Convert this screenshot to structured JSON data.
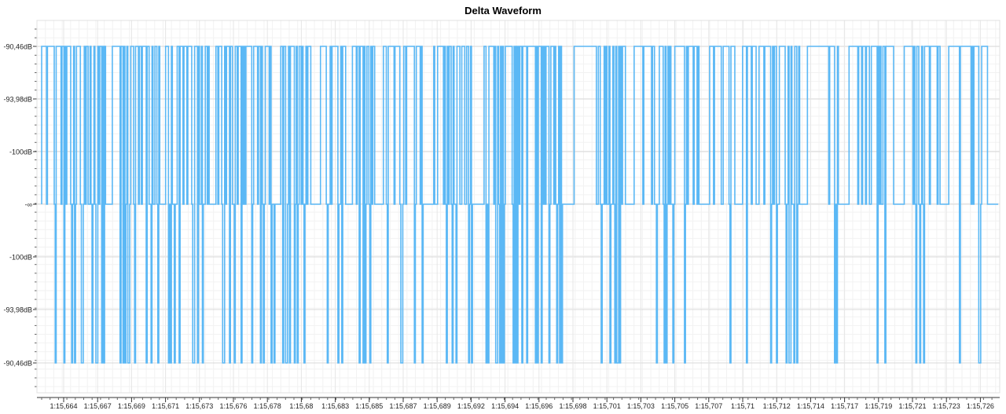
{
  "chart_data": {
    "type": "line",
    "title": "Delta Waveform",
    "xlabel": "",
    "ylabel": "",
    "y_tick_labels": [
      "-90,46dB",
      "-93,98dB",
      "-100dB",
      "-∞",
      "-100dB",
      "-93,98dB",
      "-90,46dB"
    ],
    "y_tick_values": [
      3,
      2,
      1,
      0,
      -1,
      -2,
      -3
    ],
    "ylim": [
      -3,
      3
    ],
    "x_tick_labels": [
      "1:15,664",
      "1:15,667",
      "1:15,669",
      "1:15,671",
      "1:15,673",
      "1:15,676",
      "1:15,678",
      "1:15,68",
      "1:15,683",
      "1:15,685",
      "1:15,687",
      "1:15,689",
      "1:15,692",
      "1:15,694",
      "1:15,696",
      "1:15,698",
      "1:15,701",
      "1:15,703",
      "1:15,705",
      "1:15,707",
      "1:15,71",
      "1:15,712",
      "1:15,714",
      "1:15,717",
      "1:15,719",
      "1:15,721",
      "1:15,723",
      "1:15,726"
    ],
    "xlim_ms": [
      75662.2,
      75727.8
    ],
    "series": [
      {
        "name": "",
        "color": "#5bb8f5",
        "levels": [
          3,
          3,
          3,
          3,
          3,
          0,
          3,
          3,
          3,
          3,
          3,
          3,
          3,
          0,
          -3,
          3,
          3,
          3,
          3,
          3,
          0,
          3,
          3,
          -3,
          3,
          0,
          3,
          3,
          3,
          3,
          0,
          -3,
          0,
          3,
          -3,
          0,
          3,
          3,
          3,
          3,
          0,
          -3,
          -3,
          0,
          3,
          0,
          3,
          3,
          0,
          0,
          3,
          0,
          -3,
          0,
          3,
          0,
          -3,
          -3,
          3,
          0,
          3,
          3,
          -3,
          3,
          -3,
          3,
          0,
          0,
          0,
          0,
          0,
          0,
          0,
          3,
          3,
          3,
          3,
          3,
          3,
          3,
          3,
          -3,
          3,
          3,
          -3,
          3,
          -3,
          0,
          3,
          -3,
          -3,
          0,
          3,
          3,
          3,
          0,
          -3,
          3,
          3,
          3,
          0,
          3,
          3,
          0,
          3,
          3,
          3,
          3,
          -3,
          3,
          3,
          0,
          0,
          -3,
          3,
          0,
          0,
          3,
          3,
          0,
          -3,
          3,
          0,
          0,
          0,
          0,
          0,
          0,
          3,
          3,
          3,
          -3,
          0,
          -3,
          3,
          0,
          0,
          -3,
          0,
          0,
          3,
          3,
          -3,
          3,
          3,
          3,
          0,
          3,
          3,
          3,
          0,
          3,
          3,
          3,
          3,
          0,
          -3,
          -3,
          3,
          3,
          3,
          -3,
          3,
          0,
          0,
          3,
          -3,
          0,
          0,
          3,
          3,
          0,
          3,
          0,
          0,
          0,
          0,
          0,
          0,
          0,
          3,
          3,
          0,
          3,
          3,
          3,
          0,
          -3,
          -3,
          3,
          0,
          3,
          3,
          3,
          -3,
          3,
          3,
          0,
          0,
          -3,
          3,
          3,
          0,
          3,
          3,
          3,
          -3,
          3,
          0,
          3,
          0,
          3,
          3,
          3,
          3,
          3,
          3,
          -3,
          0,
          3,
          3,
          3,
          3,
          0,
          3,
          3,
          -3,
          3,
          0,
          -3,
          0,
          3,
          3,
          3,
          3,
          0,
          3,
          -3,
          0,
          0,
          -3,
          0,
          0,
          0,
          0,
          0,
          0,
          3,
          3,
          -3,
          3,
          3,
          -3,
          -3,
          0,
          3,
          -3,
          3,
          3,
          3,
          3,
          -3,
          0,
          3,
          -3,
          0,
          3,
          3,
          0,
          3,
          0,
          -3,
          0,
          3,
          0,
          3,
          3,
          3,
          0,
          0,
          0,
          0,
          0,
          0,
          0,
          0,
          0,
          0,
          3,
          3,
          3,
          3,
          3,
          3,
          0,
          -3,
          0,
          0,
          3,
          0,
          3,
          3,
          3,
          3,
          3,
          3,
          -3,
          0,
          0,
          3,
          -3,
          3,
          3,
          3,
          0,
          0,
          0,
          0,
          0,
          0,
          0,
          3,
          3,
          3,
          3,
          0,
          3,
          3,
          -3,
          3,
          3,
          3,
          -3,
          3,
          -3,
          0,
          3,
          3,
          0,
          -3,
          3,
          0,
          3,
          3,
          0,
          0,
          0,
          0,
          0,
          0,
          0,
          0,
          0,
          3,
          3,
          3,
          0,
          -3,
          3,
          3,
          3,
          3,
          3,
          3,
          0,
          3,
          3,
          3,
          3,
          3,
          0,
          -3,
          -3,
          0,
          3,
          3,
          0,
          3,
          3,
          3,
          3,
          3,
          3,
          3,
          3,
          -3,
          0,
          3,
          3,
          3,
          3,
          0,
          3,
          -3,
          0,
          0,
          0,
          0,
          0,
          0,
          0,
          0,
          0,
          0,
          0,
          3,
          0,
          0,
          0,
          3,
          3,
          3,
          3,
          3,
          3,
          0,
          3,
          0,
          -3,
          3,
          0,
          3,
          3,
          0,
          -3,
          3,
          0,
          0,
          -3,
          3,
          3,
          3,
          0,
          0,
          3,
          3,
          3,
          0,
          0,
          3,
          3,
          -3,
          0,
          3,
          -3,
          0,
          0,
          0,
          0,
          0,
          0,
          0,
          0,
          0,
          0,
          0,
          0,
          3,
          3,
          -3,
          0,
          -3,
          3,
          3,
          3,
          3,
          3,
          0,
          3,
          -3,
          -3,
          3,
          0,
          -3,
          3,
          -3,
          3,
          -3,
          0,
          3,
          3,
          3,
          3,
          3,
          3,
          3,
          0,
          -3,
          3,
          -3,
          3,
          -3,
          3,
          0,
          3,
          3,
          -3,
          3,
          3,
          3,
          3,
          -3,
          3,
          3,
          3,
          3,
          3,
          3,
          3,
          3,
          -3,
          3,
          -3,
          3,
          3,
          3,
          -3,
          3,
          0,
          3,
          0,
          3,
          3,
          3,
          -3,
          0,
          3,
          3,
          3,
          0,
          3,
          0,
          -3,
          0,
          3,
          -3,
          3,
          -3,
          0,
          0,
          0,
          0,
          0,
          0,
          0,
          0,
          0,
          0,
          0,
          0,
          3,
          3,
          3,
          3,
          3,
          3,
          3,
          3,
          3,
          3,
          3,
          3,
          3,
          3,
          3,
          3,
          3,
          3,
          3,
          3,
          3,
          3,
          3,
          0,
          0,
          3,
          3,
          0,
          -3,
          0,
          0,
          3,
          0,
          3,
          0,
          0,
          3,
          -3,
          0,
          0,
          3,
          0,
          -3,
          3,
          -3,
          -3,
          3,
          -3,
          3,
          0,
          3,
          3,
          3,
          0,
          0,
          0,
          0,
          0,
          0,
          0,
          0,
          0,
          3,
          3,
          3,
          3,
          3,
          3,
          3,
          3,
          3,
          0,
          3,
          3,
          3,
          3,
          3,
          3,
          3,
          3,
          0,
          3,
          3,
          0,
          0,
          -3,
          0,
          0,
          3,
          3,
          3,
          3,
          0,
          -3,
          3,
          -3,
          0,
          3,
          0,
          3,
          0,
          0,
          -3,
          0,
          3,
          3,
          3,
          3,
          3,
          3,
          3,
          3,
          3,
          3,
          -3,
          0,
          3,
          0,
          3,
          3,
          3,
          3,
          3,
          0,
          3,
          3,
          3,
          0,
          3,
          0,
          0,
          0,
          0,
          0,
          0,
          0,
          0,
          0,
          0,
          0,
          3,
          3,
          3,
          3,
          0,
          3,
          3,
          3,
          3,
          3,
          3,
          3,
          0,
          0,
          3,
          3,
          3,
          3,
          3,
          3,
          0,
          -3,
          3,
          3,
          3,
          3,
          0,
          0,
          0,
          0,
          0,
          0,
          0,
          0,
          3,
          3,
          3,
          3,
          -3,
          3,
          3,
          3,
          3,
          0,
          3,
          3,
          3,
          3,
          0,
          0,
          0,
          3,
          3,
          3,
          3,
          3,
          0,
          3,
          3,
          3,
          3,
          3,
          3,
          -3,
          0,
          3,
          0,
          3,
          3,
          -3,
          0,
          0,
          3,
          3,
          3,
          3,
          3,
          3,
          0,
          -3,
          0,
          3,
          -3,
          -3,
          3,
          0,
          0,
          -3,
          3,
          3,
          -3,
          0,
          3,
          0,
          0,
          0,
          0,
          0,
          0,
          0,
          0,
          3,
          3,
          3,
          3,
          3,
          3,
          3,
          3,
          3,
          3,
          3,
          3,
          3,
          3,
          3,
          3,
          3,
          3,
          3,
          3,
          3,
          3,
          0,
          3,
          3,
          3,
          3,
          3,
          -3,
          0,
          -3,
          3,
          0,
          0,
          0,
          0,
          0,
          0,
          0,
          0,
          0,
          0,
          0,
          3,
          3,
          3,
          3,
          3,
          3,
          3,
          3,
          3,
          0,
          3,
          3,
          3,
          0,
          3,
          3,
          3,
          0,
          3,
          3,
          3,
          0,
          0,
          3,
          3,
          3,
          3,
          3,
          3,
          -3,
          3,
          0,
          3,
          0,
          0,
          3,
          3,
          -3,
          3,
          3,
          3,
          3,
          3,
          3,
          3,
          3,
          0,
          0,
          0,
          0,
          0,
          0,
          0,
          0,
          0,
          0,
          0,
          3,
          3,
          3,
          3,
          3,
          3,
          3,
          3,
          3,
          0,
          3,
          0,
          -3,
          3,
          3,
          0,
          -3,
          0,
          3,
          0,
          -3,
          3,
          3,
          3,
          3,
          3,
          0,
          3,
          3,
          3,
          3,
          3,
          3,
          3,
          0,
          3,
          3,
          0,
          0,
          0,
          0,
          0,
          0,
          0,
          0,
          0,
          3,
          3,
          3,
          3,
          3,
          3,
          3,
          3,
          3,
          3,
          3,
          -3,
          3,
          3,
          3,
          3,
          3,
          3,
          3,
          3,
          3,
          3,
          3,
          0,
          3,
          0,
          3,
          3,
          3,
          3,
          3,
          -3,
          -3,
          0,
          3,
          3,
          3,
          3,
          3,
          3,
          0,
          0,
          0,
          0,
          0,
          0,
          0,
          0,
          0,
          0,
          0
        ]
      }
    ]
  }
}
